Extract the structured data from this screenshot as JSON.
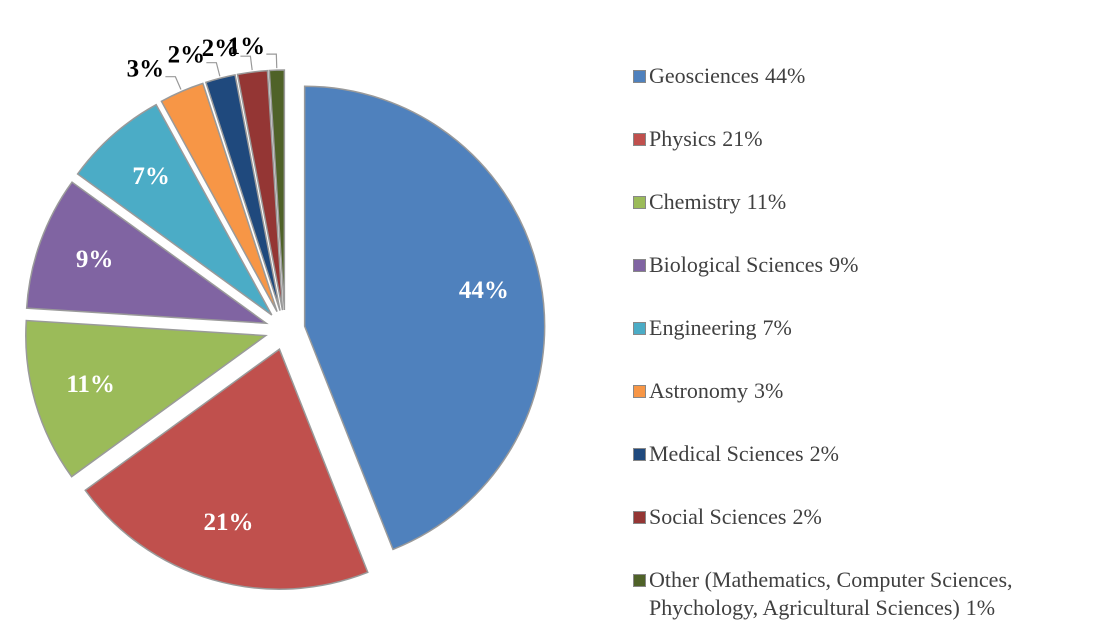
{
  "chart_data": {
    "type": "pie",
    "categories": [
      "Geosciences",
      "Physics",
      "Chemistry",
      "Biological Sciences",
      "Engineering",
      "Astronomy",
      "Medical Sciences",
      "Social Sciences",
      "Other (Mathematics, Computer Sciences, Phychology, Agricultural Sciences)"
    ],
    "values": [
      44,
      21,
      11,
      9,
      7,
      3,
      2,
      2,
      1
    ],
    "value_labels": [
      "44%",
      "21%",
      "11%",
      "9%",
      "7%",
      "3%",
      "2%",
      "2%",
      "1%"
    ],
    "colors": [
      "#4f81bd",
      "#c0504d",
      "#9bbb59",
      "#8064a2",
      "#4bacc6",
      "#f79646",
      "#1f497d",
      "#943634",
      "#4f6228"
    ],
    "legend": "right"
  }
}
